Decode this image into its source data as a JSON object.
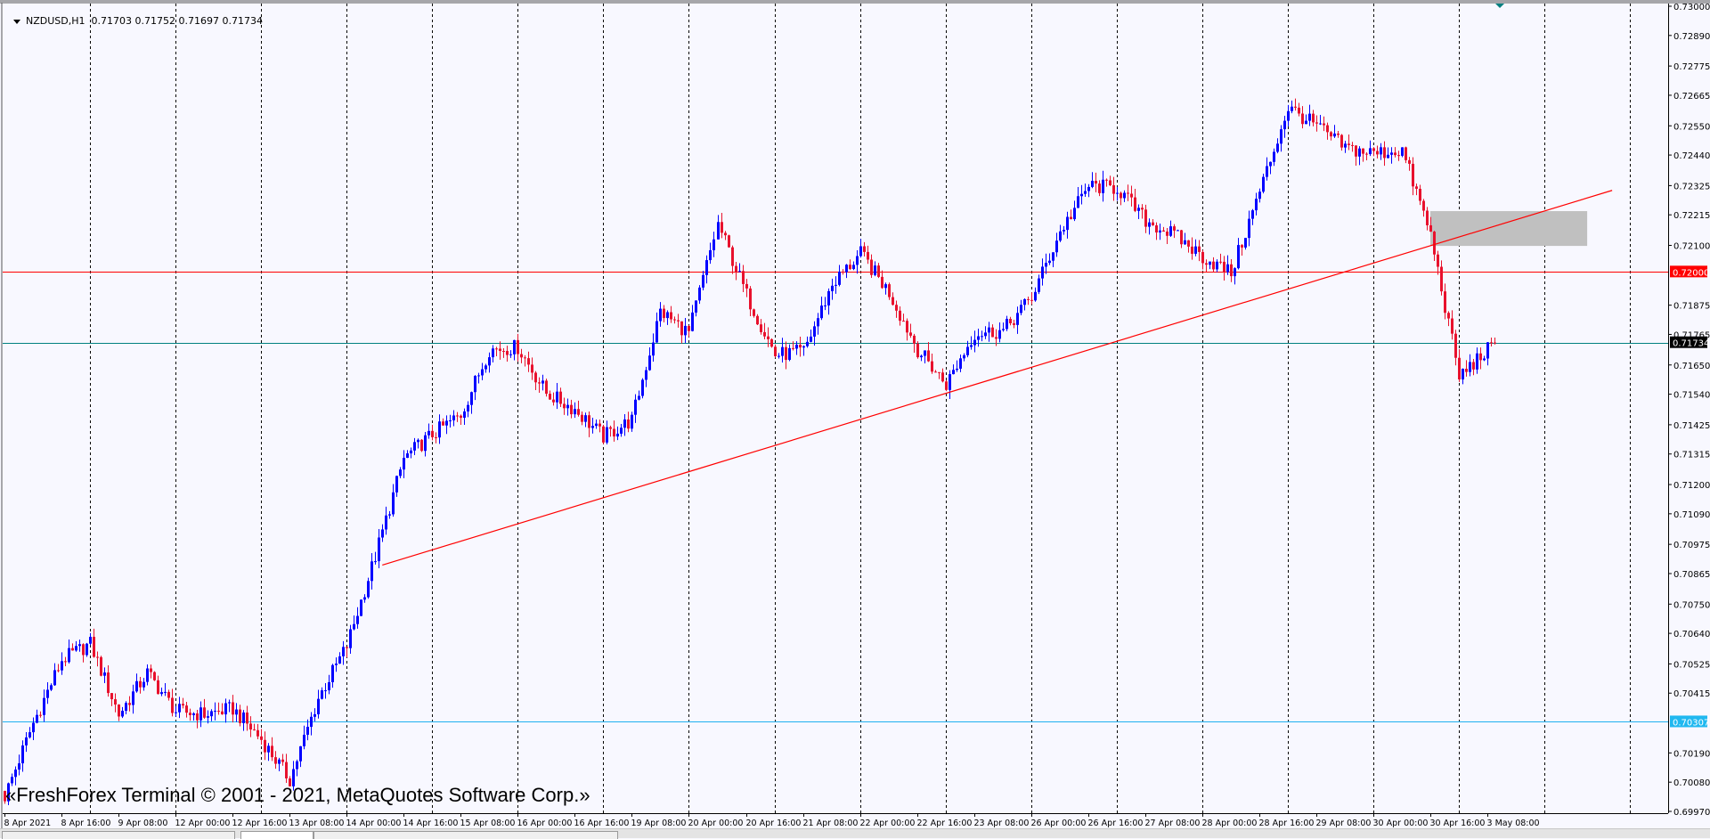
{
  "header": {
    "title": "NZDUSD,H1",
    "open": "0.71703",
    "high": "0.71752",
    "low": "0.71697",
    "close": "0.71734"
  },
  "watermark": "«FreshForex Terminal © 2001 - 2021, MetaQuotes Software Corp.»",
  "chart_data": {
    "type": "candlestick",
    "symbol": "NZDUSD",
    "timeframe": "H1",
    "ylim": [
      0.6997,
      0.73
    ],
    "grid": true,
    "price_tick_labels": [
      "0.73000",
      "0.72890",
      "0.72775",
      "0.72665",
      "0.72550",
      "0.72440",
      "0.72325",
      "0.72215",
      "0.72100",
      "0.71875",
      "0.71765",
      "0.71650",
      "0.71540",
      "0.71425",
      "0.71315",
      "0.71200",
      "0.71090",
      "0.70975",
      "0.70865",
      "0.70750",
      "0.70640",
      "0.70525",
      "0.70415",
      "0.70190",
      "0.70080",
      "0.69970"
    ],
    "time_tick_labels": [
      "8 Apr 2021",
      "8 Apr 16:00",
      "9 Apr 08:00",
      "12 Apr 00:00",
      "12 Apr 16:00",
      "13 Apr 08:00",
      "14 Apr 00:00",
      "14 Apr 16:00",
      "15 Apr 08:00",
      "16 Apr 00:00",
      "16 Apr 16:00",
      "19 Apr 08:00",
      "20 Apr 00:00",
      "20 Apr 16:00",
      "21 Apr 08:00",
      "22 Apr 00:00",
      "22 Apr 16:00",
      "23 Apr 08:00",
      "26 Apr 00:00",
      "26 Apr 16:00",
      "27 Apr 08:00",
      "28 Apr 00:00",
      "28 Apr 16:00",
      "29 Apr 08:00",
      "30 Apr 00:00",
      "30 Apr 16:00",
      "3 May 08:00"
    ],
    "approx_close_every_8_bars": [
      0.70027,
      0.70302,
      0.7054,
      0.70601,
      0.70335,
      0.70491,
      0.70347,
      0.70335,
      0.70356,
      0.70241,
      0.70089,
      0.70396,
      0.70593,
      0.7093,
      0.71298,
      0.71389,
      0.71463,
      0.71708,
      0.71717,
      0.71544,
      0.71483,
      0.7138,
      0.71442,
      0.71852,
      0.7177,
      0.7218,
      0.71913,
      0.71688,
      0.717,
      0.71954,
      0.72069,
      0.71922,
      0.71709,
      0.71577,
      0.7177,
      0.71778,
      0.71905,
      0.72151,
      0.72324,
      0.72316,
      0.72193,
      0.72139,
      0.72057,
      0.71996,
      0.72303,
      0.72619,
      0.72549,
      0.72467,
      0.72446,
      0.72459,
      0.72139,
      0.71606,
      0.71708,
      0.7175
    ],
    "first_bar": "8 Apr 2021",
    "last_bar": "3 May 10:00",
    "last_close": 0.71734,
    "levels": [
      {
        "price": 0.72,
        "label": "0.72000",
        "color": "#ff0000",
        "label_bg": "#ff0000"
      },
      {
        "price": 0.71734,
        "label": "0.71734",
        "color": "#008080",
        "label_bg": "#000000"
      },
      {
        "price": 0.70307,
        "label": "0.70307",
        "color": "#20b0f0",
        "label_bg": "#20b8f0"
      }
    ],
    "trendline": {
      "from": {
        "time": "14 Apr 10:00",
        "price": 0.70897
      },
      "to": {
        "time": "4 May 19:00",
        "price": 0.72307
      },
      "color": "#ff0000"
    },
    "rectangle": {
      "from": {
        "time": "30 Apr 16:00",
        "price": 0.72229
      },
      "to": {
        "time": "4 May 12:00",
        "price": 0.72098
      },
      "color": "#c0c0c0"
    },
    "colors": {
      "bull": "#0000ff",
      "bear": "#e8112d",
      "grid": "#000000",
      "background": "#f8f8ff",
      "marker": "#008080"
    }
  }
}
